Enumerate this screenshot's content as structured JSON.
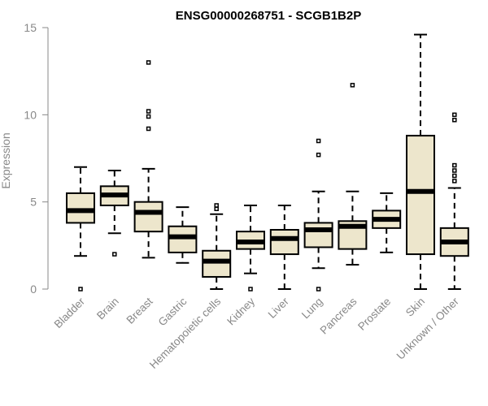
{
  "chart_data": {
    "type": "boxplot",
    "title": "ENSG00000268751 - SCGB1B2P",
    "xlabel": "",
    "ylabel": "Expression",
    "ylim": [
      0,
      15
    ],
    "yticks": [
      0,
      5,
      10,
      15
    ],
    "grid": false,
    "colors": {
      "box_fill": "#ede6cc",
      "stroke": "#000000",
      "axis_text": "#888888"
    },
    "categories": [
      "Bladder",
      "Brain",
      "Breast",
      "Gastric",
      "Hematopoietic cells",
      "Kidney",
      "Liver",
      "Lung",
      "Pancreas",
      "Prostate",
      "Skin",
      "Unknown / Other"
    ],
    "boxes": [
      {
        "label": "Bladder",
        "q1": 3.8,
        "median": 4.5,
        "q3": 5.5,
        "whisker_low": 1.9,
        "whisker_high": 7.0,
        "outliers": [
          0.0
        ]
      },
      {
        "label": "Brain",
        "q1": 4.8,
        "median": 5.4,
        "q3": 5.9,
        "whisker_low": 3.2,
        "whisker_high": 6.8,
        "outliers": [
          2.0
        ]
      },
      {
        "label": "Breast",
        "q1": 3.3,
        "median": 4.4,
        "q3": 5.0,
        "whisker_low": 1.8,
        "whisker_high": 6.9,
        "outliers": [
          9.2,
          9.9,
          10.2,
          13.0
        ]
      },
      {
        "label": "Gastric",
        "q1": 2.1,
        "median": 3.0,
        "q3": 3.6,
        "whisker_low": 1.5,
        "whisker_high": 4.7,
        "outliers": []
      },
      {
        "label": "Hematopoietic cells",
        "q1": 0.7,
        "median": 1.6,
        "q3": 2.2,
        "whisker_low": 0.0,
        "whisker_high": 4.3,
        "outliers": [
          4.6,
          4.8
        ]
      },
      {
        "label": "Kidney",
        "q1": 2.3,
        "median": 2.7,
        "q3": 3.3,
        "whisker_low": 0.9,
        "whisker_high": 4.8,
        "outliers": [
          0.0
        ]
      },
      {
        "label": "Liver",
        "q1": 2.0,
        "median": 2.9,
        "q3": 3.4,
        "whisker_low": 0.0,
        "whisker_high": 4.8,
        "outliers": []
      },
      {
        "label": "Lung",
        "q1": 2.4,
        "median": 3.4,
        "q3": 3.8,
        "whisker_low": 1.2,
        "whisker_high": 5.6,
        "outliers": [
          0.0,
          7.7,
          8.5
        ]
      },
      {
        "label": "Pancreas",
        "q1": 2.3,
        "median": 3.6,
        "q3": 3.9,
        "whisker_low": 1.4,
        "whisker_high": 5.6,
        "outliers": [
          11.7
        ]
      },
      {
        "label": "Prostate",
        "q1": 3.5,
        "median": 4.0,
        "q3": 4.5,
        "whisker_low": 2.1,
        "whisker_high": 5.5,
        "outliers": []
      },
      {
        "label": "Skin",
        "q1": 2.0,
        "median": 5.6,
        "q3": 8.8,
        "whisker_low": 0.0,
        "whisker_high": 14.6,
        "outliers": []
      },
      {
        "label": "Unknown / Other",
        "q1": 1.9,
        "median": 2.7,
        "q3": 3.5,
        "whisker_low": 0.0,
        "whisker_high": 5.8,
        "outliers": [
          6.2,
          6.5,
          6.8,
          7.1,
          9.7,
          10.0
        ]
      }
    ]
  }
}
